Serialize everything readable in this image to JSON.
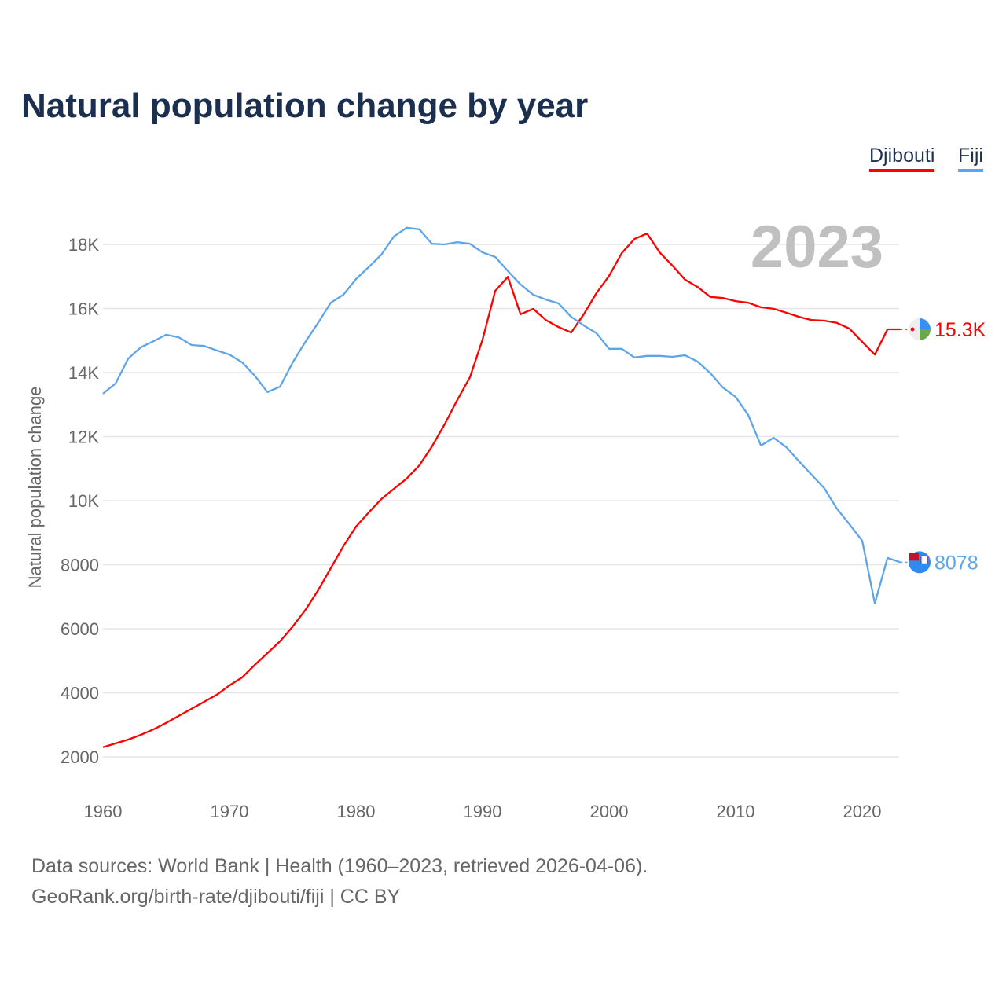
{
  "chart_data": {
    "type": "line",
    "title": "Natural population change by year",
    "xlabel": "",
    "ylabel": "Natural population change",
    "xlim": [
      1960,
      2023
    ],
    "ylim": [
      1000,
      19500
    ],
    "yticks": [
      2000,
      4000,
      6000,
      8000,
      10000,
      12000,
      14000,
      16000,
      18000
    ],
    "ytick_labels": [
      "2000",
      "4000",
      "6000",
      "8000",
      "10K",
      "12K",
      "14K",
      "16K",
      "18K"
    ],
    "xticks": [
      1960,
      1970,
      1980,
      1990,
      2000,
      2010,
      2020
    ],
    "xtick_labels": [
      "1960",
      "1970",
      "1980",
      "1990",
      "2000",
      "2010",
      "2020"
    ],
    "year_label": "2023",
    "grid": true,
    "legend_position": "top-right",
    "x": [
      1960,
      1961,
      1962,
      1963,
      1964,
      1965,
      1966,
      1967,
      1968,
      1969,
      1970,
      1971,
      1972,
      1973,
      1974,
      1975,
      1976,
      1977,
      1978,
      1979,
      1980,
      1981,
      1982,
      1983,
      1984,
      1985,
      1986,
      1987,
      1988,
      1989,
      1990,
      1991,
      1992,
      1993,
      1994,
      1995,
      1996,
      1997,
      1998,
      1999,
      2000,
      2001,
      2002,
      2003,
      2004,
      2005,
      2006,
      2007,
      2008,
      2009,
      2010,
      2011,
      2012,
      2013,
      2014,
      2015,
      2016,
      2017,
      2018,
      2019,
      2020,
      2021,
      2022,
      2023
    ],
    "series": [
      {
        "name": "Djibouti",
        "color": "#ff0000",
        "end_label": "15.3K",
        "values": [
          2300,
          2420,
          2540,
          2690,
          2860,
          3060,
          3280,
          3500,
          3720,
          3940,
          4230,
          4480,
          4870,
          5240,
          5610,
          6070,
          6590,
          7200,
          7890,
          8580,
          9190,
          9630,
          10050,
          10370,
          10690,
          11100,
          11690,
          12380,
          13140,
          13850,
          15030,
          16550,
          16990,
          15820,
          15990,
          15640,
          15420,
          15250,
          15820,
          16480,
          17020,
          17730,
          18170,
          18340,
          17750,
          17340,
          16900,
          16670,
          16360,
          16330,
          16230,
          16180,
          16040,
          15990,
          15870,
          15740,
          15640,
          15620,
          15550,
          15370,
          14960,
          14560,
          15350,
          15350
        ]
      },
      {
        "name": "Fiji",
        "color": "#5da5e8",
        "end_label": "8078",
        "values": [
          13340,
          13660,
          14440,
          14790,
          14980,
          15180,
          15100,
          14860,
          14830,
          14690,
          14560,
          14320,
          13900,
          13390,
          13560,
          14320,
          14960,
          15550,
          16180,
          16430,
          16920,
          17290,
          17680,
          18250,
          18520,
          18470,
          18020,
          18000,
          18070,
          18020,
          17750,
          17610,
          17170,
          16750,
          16430,
          16280,
          16160,
          15740,
          15470,
          15230,
          14740,
          14740,
          14470,
          14520,
          14520,
          14490,
          14540,
          14340,
          13980,
          13530,
          13240,
          12670,
          11720,
          11960,
          11670,
          11230,
          10810,
          10390,
          9750,
          9260,
          8750,
          6790,
          8210,
          8078
        ]
      }
    ]
  },
  "footer": {
    "line1": "Data sources: World Bank | Health (1960–2023, retrieved 2026-04-06).",
    "line2": "GeoRank.org/birth-rate/djibouti/fiji | CC BY"
  }
}
